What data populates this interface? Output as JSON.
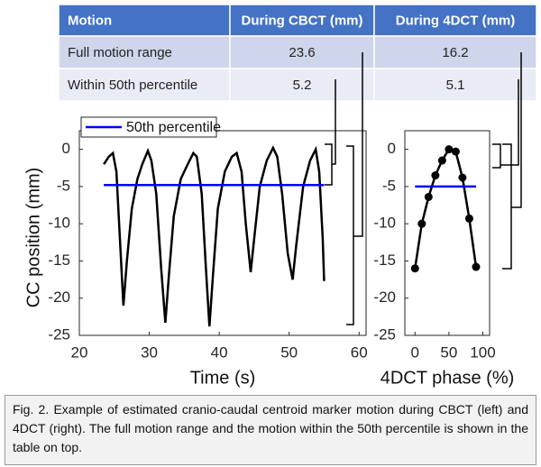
{
  "table": {
    "header": [
      "Motion",
      "During CBCT (mm)",
      "During 4DCT (mm)"
    ],
    "rows": [
      [
        "Full motion range",
        "23.6",
        "16.2"
      ],
      [
        "Within 50th percentile",
        "5.2",
        "5.1"
      ]
    ]
  },
  "chart_data": [
    {
      "type": "line",
      "xlabel": "Time (s)",
      "ylabel": "CC position (mm)",
      "xlim": [
        20,
        61
      ],
      "xticks": [
        20,
        30,
        40,
        50,
        60
      ],
      "ylim": [
        -25,
        2.5
      ],
      "yticks": [
        0,
        -5,
        -10,
        -15,
        -20,
        -25
      ],
      "legend": "upper left",
      "series": [
        {
          "color": "#000000",
          "x": [
            23.5,
            24.2,
            24.8,
            25.3,
            25.8,
            26.3,
            26.8,
            27.5,
            28.3,
            29,
            29.8,
            30.3,
            31,
            31.7,
            32.3,
            32.8,
            33.5,
            34.5,
            35.5,
            36.3,
            36.8,
            37.5,
            38.1,
            38.6,
            39.1,
            39.8,
            40.8,
            41.8,
            42.5,
            43.2,
            43.8,
            44.5,
            45,
            45.8,
            46.8,
            47.7,
            48.3,
            49,
            49.8,
            50.5,
            51,
            52,
            53,
            53.8,
            54.3,
            54.8,
            55
          ],
          "values": [
            -2,
            -1,
            -0.5,
            -3,
            -12,
            -21,
            -15,
            -8,
            -4,
            -2,
            -0.2,
            -1.5,
            -6,
            -16,
            -23.3,
            -17,
            -9,
            -4,
            -2,
            -0.5,
            -1,
            -6,
            -16,
            -23.8,
            -17,
            -8,
            -3,
            -1,
            -0.5,
            -3,
            -10,
            -16.5,
            -12,
            -5,
            -1.5,
            0.2,
            -1,
            -6,
            -14,
            -17.5,
            -13,
            -5,
            -1.5,
            0,
            -3,
            -12,
            -17.7
          ]
        },
        {
          "name": "50th percentile",
          "color": "#0000ff",
          "x": [
            23.5,
            55
          ],
          "values": [
            -4.8,
            -4.8
          ]
        }
      ]
    },
    {
      "type": "line",
      "xlabel": "4DCT phase (%)",
      "xlim": [
        -15,
        110
      ],
      "xticks": [
        0,
        50,
        100
      ],
      "ylim": [
        -25,
        2.5
      ],
      "yticks": [
        0,
        -5,
        -10,
        -15,
        -20,
        -25
      ],
      "series": [
        {
          "color": "#000000",
          "markers": true,
          "x": [
            0,
            10,
            20,
            30,
            40,
            50,
            60,
            70,
            80,
            90
          ],
          "values": [
            -16,
            -10,
            -6.4,
            -3.5,
            -1.5,
            0,
            -0.3,
            -3.8,
            -9.3,
            -15.8
          ]
        },
        {
          "color": "#0000ff",
          "x": [
            0,
            90
          ],
          "values": [
            -5,
            -5
          ]
        }
      ]
    }
  ],
  "caption": "Fig. 2. Example of estimated cranio-caudal centroid marker motion during CBCT (left) and 4DCT (right). The full motion range and the motion within the 50th percentile is shown in the table on top."
}
